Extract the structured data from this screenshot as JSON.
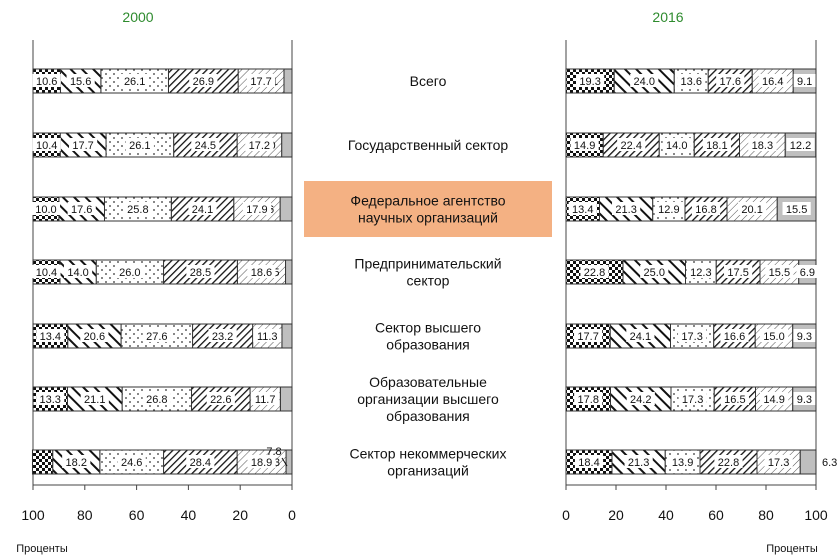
{
  "chart_data": {
    "type": "bar",
    "orientation": "horizontal",
    "stacked": true,
    "unit_label": "Проценты",
    "categories": [
      "Всего",
      "Государственный сектор",
      "Федеральное агентство научных организаций",
      "Предпринимательский сектор",
      "Сектор высшего образования",
      "Образовательные организации высшего образования",
      "Сектор некоммерческих организаций"
    ],
    "category_lines": [
      [
        "Всего"
      ],
      [
        "Государственный сектор"
      ],
      [
        "Федеральное агентство",
        "научных организаций"
      ],
      [
        "Предпринимательский",
        "сектор"
      ],
      [
        "Сектор высшего",
        "образования"
      ],
      [
        "Образовательные",
        "организации высшего",
        "образования"
      ],
      [
        "Сектор некоммерческих",
        "организаций"
      ]
    ],
    "highlight_category_index": 2,
    "highlight_color": "#f4b183",
    "panels": [
      {
        "title": "2000",
        "x_direction": "reversed",
        "xlim": [
          0,
          100
        ],
        "xticks": [
          100,
          80,
          60,
          40,
          20,
          0
        ],
        "segment_patterns": [
          "gray",
          "diag-light",
          "diag-heavy",
          "dots",
          "backdiag",
          "checker"
        ],
        "rows": [
          {
            "values": [
              3.1,
              17.7,
              26.9,
              26.1,
              15.6,
              10.6
            ],
            "labels": [
              "3.1",
              "17.7",
              "26.9",
              "26.1",
              "15.6",
              "10.6"
            ]
          },
          {
            "values": [
              4.0,
              17.2,
              24.5,
              26.1,
              17.7,
              10.4
            ],
            "labels": [
              "4.0",
              "17.2",
              "24.5",
              "26.1",
              "17.7",
              "10.4"
            ]
          },
          {
            "values": [
              4.6,
              17.9,
              24.1,
              25.8,
              17.6,
              10.0
            ],
            "labels": [
              "4.6",
              "17.9",
              "24.1",
              "25.8",
              "17.6",
              "10.0"
            ]
          },
          {
            "values": [
              2.5,
              18.6,
              28.5,
              26.0,
              14.0,
              10.4
            ],
            "labels": [
              "2.5",
              "18.6",
              "28.5",
              "26.0",
              "14.0",
              "10.4"
            ]
          },
          {
            "values": [
              3.9,
              11.3,
              23.2,
              27.6,
              20.6,
              13.4
            ],
            "labels": [
              "3.9",
              "11.3",
              "23.2",
              "27.6",
              "20.6",
              "13.4"
            ]
          },
          {
            "values": [
              4.5,
              11.7,
              22.6,
              26.8,
              21.1,
              13.3
            ],
            "labels": [
              "4.5",
              "11.7",
              "22.6",
              "26.8",
              "21.1",
              "13.3"
            ]
          },
          {
            "values": [
              2.3,
              18.9,
              28.4,
              24.6,
              18.2,
              7.8
            ],
            "labels": [
              "2.3",
              "18.9",
              "28.4",
              "24.6",
              "18.2",
              "7.8"
            ]
          }
        ]
      },
      {
        "title": "2016",
        "x_direction": "normal",
        "xlim": [
          0,
          100
        ],
        "xticks": [
          0,
          20,
          40,
          60,
          80,
          100
        ],
        "rows": [
          {
            "values": [
              19.3,
              24.0,
              13.6,
              17.6,
              16.4,
              9.1
            ],
            "labels": [
              "19.3",
              "24.0",
              "13.6",
              "17.6",
              "16.4",
              "9.1"
            ],
            "patterns": [
              "checker",
              "backdiag",
              "dots",
              "diag-heavy",
              "diag-light",
              "gray"
            ]
          },
          {
            "values": [
              14.9,
              22.4,
              14.0,
              18.1,
              18.3,
              12.2
            ],
            "labels": [
              "14.9",
              "22.4",
              "14.0",
              "18.1",
              "18.3",
              "12.2"
            ],
            "patterns": [
              "checker",
              "diag-heavy",
              "dots",
              "diag-heavy",
              "diag-light",
              "gray"
            ]
          },
          {
            "values": [
              13.4,
              21.3,
              12.9,
              16.8,
              20.1,
              15.5
            ],
            "labels": [
              "13.4",
              "21.3",
              "12.9",
              "16.8",
              "20.1",
              "15.5"
            ],
            "patterns": [
              "checker",
              "backdiag",
              "dots",
              "diag-heavy",
              "diag-light",
              "gray"
            ]
          },
          {
            "values": [
              22.8,
              25.0,
              12.3,
              17.5,
              15.5,
              6.9
            ],
            "labels": [
              "22.8",
              "25.0",
              "12.3",
              "17.5",
              "15.5",
              "6.9"
            ],
            "patterns": [
              "checker",
              "backdiag",
              "dots",
              "diag-heavy",
              "diag-light",
              "gray"
            ]
          },
          {
            "values": [
              17.7,
              24.1,
              17.3,
              16.6,
              15.0,
              9.3
            ],
            "labels": [
              "17.7",
              "24.1",
              "17.3",
              "16.6",
              "15.0",
              "9.3"
            ],
            "patterns": [
              "checker",
              "backdiag",
              "dots",
              "diag-heavy",
              "diag-light",
              "gray"
            ]
          },
          {
            "values": [
              17.8,
              24.2,
              17.3,
              16.5,
              14.9,
              9.3
            ],
            "labels": [
              "17.8",
              "24.2",
              "17.3",
              "16.5",
              "14.9",
              "9.3"
            ],
            "patterns": [
              "checker",
              "backdiag",
              "dots",
              "diag-heavy",
              "diag-light",
              "gray"
            ]
          },
          {
            "values": [
              18.4,
              21.3,
              13.9,
              22.8,
              17.3,
              6.3
            ],
            "labels": [
              "18.4",
              "21.3",
              "13.9",
              "22.8",
              "17.3",
              "6.3"
            ],
            "patterns": [
              "checker",
              "backdiag",
              "dots",
              "diag-heavy",
              "diag-light",
              "gray"
            ]
          }
        ]
      }
    ],
    "colors": {
      "title": "#2e8b2e",
      "gray": "#bfbfbf",
      "ink": "#111111"
    }
  }
}
